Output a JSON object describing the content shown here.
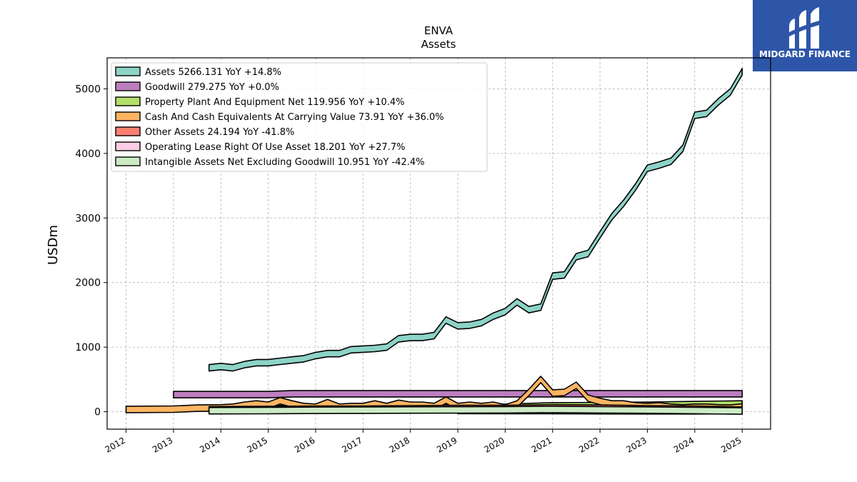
{
  "logo": {
    "text": "MIDGARD FINANCE",
    "icon": "m-logo-icon"
  },
  "chart_data": {
    "type": "area",
    "title": "ENVA",
    "subtitle": "Assets",
    "ylabel": "USDm",
    "xlabel": "",
    "ylim": [
      -270,
      5480
    ],
    "xlim": [
      2011.6,
      2025.6
    ],
    "yticks": [
      0,
      1000,
      2000,
      3000,
      4000,
      5000
    ],
    "xticks": [
      "2012",
      "2013",
      "2014",
      "2015",
      "2016",
      "2017",
      "2018",
      "2019",
      "2020",
      "2021",
      "2022",
      "2023",
      "2024",
      "2025"
    ],
    "grid": true,
    "legend_position": "top-left",
    "series": [
      {
        "name": "Assets",
        "legend": "Assets  5266.131 YoY +14.8%",
        "color": "#8dd3c7",
        "x": [
          2013.75,
          2014.0,
          2014.25,
          2014.5,
          2014.75,
          2015.0,
          2015.25,
          2015.5,
          2015.75,
          2016.0,
          2016.25,
          2016.5,
          2016.75,
          2017.0,
          2017.25,
          2017.5,
          2017.75,
          2018.0,
          2018.25,
          2018.5,
          2018.75,
          2019.0,
          2019.25,
          2019.5,
          2019.75,
          2020.0,
          2020.25,
          2020.5,
          2020.75,
          2021.0,
          2021.25,
          2021.5,
          2021.75,
          2022.0,
          2022.25,
          2022.5,
          2022.75,
          2023.0,
          2023.25,
          2023.5,
          2023.75,
          2024.0,
          2024.25,
          2024.5,
          2024.75,
          2025.0
        ],
        "values": [
          680,
          700,
          680,
          730,
          760,
          760,
          780,
          800,
          820,
          870,
          900,
          900,
          960,
          970,
          980,
          1000,
          1130,
          1150,
          1150,
          1180,
          1420,
          1330,
          1340,
          1380,
          1480,
          1550,
          1700,
          1580,
          1620,
          2100,
          2120,
          2400,
          2450,
          2740,
          3020,
          3230,
          3480,
          3770,
          3820,
          3880,
          4080,
          4590,
          4620,
          4800,
          4950,
          5266
        ]
      },
      {
        "name": "Goodwill",
        "legend": "Goodwill  279.275 YoY +0.0%",
        "color": "#bd7ebf",
        "x": [
          2013.0,
          2015.0,
          2015.5,
          2016.0,
          2025.0
        ],
        "values": [
          265,
          265,
          279,
          279,
          279
        ]
      },
      {
        "name": "Property Plant And Equipment Net",
        "legend": "Property Plant And Equipment Net  119.956 YoY +10.4%",
        "color": "#b3de69",
        "x": [
          2013.75,
          2015.0,
          2016.0,
          2017.0,
          2018.0,
          2019.0,
          2020.0,
          2021.0,
          2022.0,
          2023.0,
          2024.0,
          2025.0
        ],
        "values": [
          40,
          45,
          50,
          55,
          60,
          65,
          70,
          90,
          95,
          100,
          110,
          120
        ]
      },
      {
        "name": "Cash And Cash Equivalents At Carrying Value",
        "legend": "Cash And Cash Equivalents At Carrying Value  73.91 YoY +36.0%",
        "color": "#fdb462",
        "x": [
          2012.0,
          2013.0,
          2013.5,
          2014.0,
          2014.25,
          2014.5,
          2014.75,
          2015.0,
          2015.25,
          2015.5,
          2015.75,
          2016.0,
          2016.25,
          2016.5,
          2016.75,
          2017.0,
          2017.25,
          2017.5,
          2017.75,
          2018.0,
          2018.25,
          2018.5,
          2018.75,
          2019.0,
          2019.25,
          2019.5,
          2019.75,
          2020.0,
          2020.25,
          2020.5,
          2020.75,
          2021.0,
          2021.25,
          2021.5,
          2021.75,
          2022.0,
          2022.25,
          2022.5,
          2022.75,
          2023.0,
          2023.25,
          2023.5,
          2023.75,
          2024.0,
          2024.25,
          2024.5,
          2024.75,
          2025.0
        ],
        "values": [
          35,
          40,
          55,
          60,
          70,
          100,
          120,
          100,
          170,
          120,
          80,
          70,
          140,
          70,
          80,
          80,
          120,
          80,
          130,
          100,
          100,
          80,
          180,
          80,
          100,
          80,
          100,
          60,
          120,
          300,
          500,
          290,
          300,
          410,
          210,
          160,
          120,
          120,
          90,
          80,
          90,
          70,
          60,
          70,
          70,
          60,
          55,
          74
        ]
      },
      {
        "name": "Other Assets",
        "legend": "Other Assets  24.194 YoY -41.8%",
        "color": "#fb8072",
        "x": [
          2013.75,
          2015.0,
          2016.0,
          2017.0,
          2018.0,
          2019.0,
          2020.0,
          2021.0,
          2022.0,
          2023.0,
          2024.0,
          2025.0
        ],
        "values": [
          30,
          35,
          40,
          40,
          45,
          50,
          50,
          60,
          55,
          45,
          40,
          24
        ]
      },
      {
        "name": "Operating Lease Right Of Use Asset",
        "legend": "Operating Lease Right Of Use Asset  18.201 YoY +27.7%",
        "color": "#fccde5",
        "x": [
          2019.0,
          2020.0,
          2021.0,
          2022.0,
          2023.0,
          2024.0,
          2025.0
        ],
        "values": [
          20,
          19,
          17,
          15,
          14,
          14,
          18
        ]
      },
      {
        "name": "Intangible Assets Net Excluding Goodwill",
        "legend": "Intangible Assets Net Excluding Goodwill  10.951 YoY -42.4%",
        "color": "#ccebc5",
        "x": [
          2013.75,
          2015.0,
          2016.0,
          2017.0,
          2018.0,
          2019.0,
          2020.0,
          2021.0,
          2022.0,
          2023.0,
          2024.0,
          2025.0
        ],
        "values": [
          15,
          18,
          22,
          24,
          26,
          28,
          30,
          35,
          30,
          25,
          19,
          11
        ]
      }
    ]
  }
}
